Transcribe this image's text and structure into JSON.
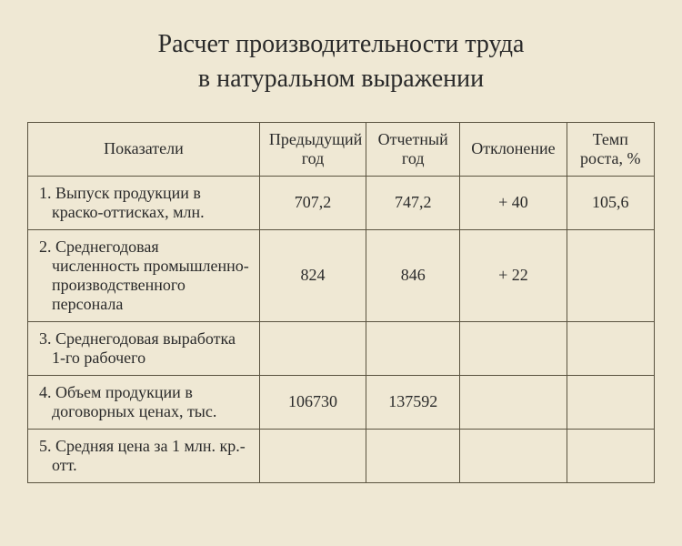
{
  "title_line1": "Расчет производительности труда",
  "title_line2": "в натуральном выражении",
  "table": {
    "type": "table",
    "background_color": "#efe8d4",
    "border_color": "#5a5340",
    "text_color": "#2a2a2a",
    "header_fontsize": 18,
    "cell_fontsize": 18,
    "columns": [
      {
        "label": "Показатели",
        "width_pct": 37,
        "align": "left"
      },
      {
        "label": "Предыдущий год",
        "width_pct": 17,
        "align": "center"
      },
      {
        "label": "Отчетный год",
        "width_pct": 15,
        "align": "center"
      },
      {
        "label": "Отклонение",
        "width_pct": 17,
        "align": "center"
      },
      {
        "label": "Темп роста, %",
        "width_pct": 14,
        "align": "center"
      }
    ],
    "rows": [
      {
        "label": "1. Выпуск продукции в краско-оттисках, млн.",
        "prev": "707,2",
        "curr": "747,2",
        "dev": "+ 40",
        "rate": "105,6"
      },
      {
        "label": "2. Среднегодовая численность промышленно-производственного персонала",
        "prev": "824",
        "curr": "846",
        "dev": "+ 22",
        "rate": ""
      },
      {
        "label": "3. Среднегодовая выработка 1-го рабочего",
        "prev": "",
        "curr": "",
        "dev": "",
        "rate": ""
      },
      {
        "label": "4. Объем продукции в договорных ценах, тыс.",
        "prev": "106730",
        "curr": "137592",
        "dev": "",
        "rate": ""
      },
      {
        "label": "5. Средняя цена за 1 млн. кр.-отт.",
        "prev": "",
        "curr": "",
        "dev": "",
        "rate": ""
      }
    ]
  }
}
